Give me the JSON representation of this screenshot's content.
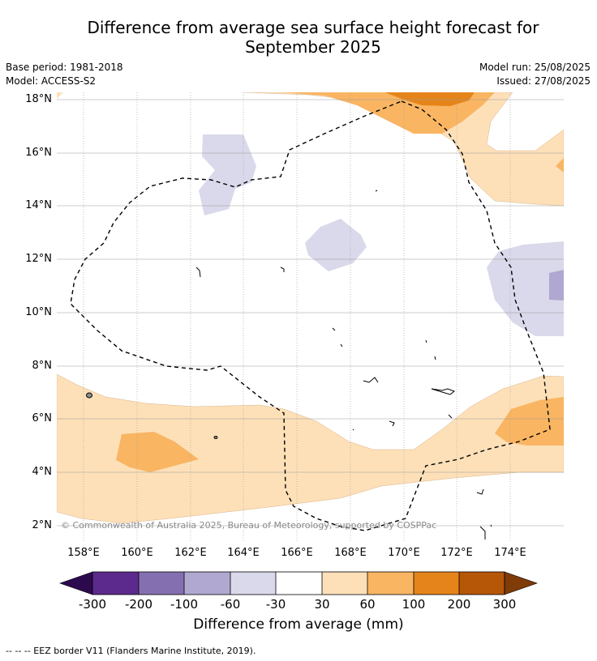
{
  "title": {
    "line1": "Difference from average sea surface height forecast for",
    "line2": "September 2025"
  },
  "meta": {
    "base_period": "Base period: 1981-2018",
    "model": "Model: ACCESS-S2",
    "model_run": "Model run: 25/08/2025",
    "issued": "Issued: 27/08/2025"
  },
  "map": {
    "lat_labels": [
      "18°N",
      "16°N",
      "14°N",
      "12°N",
      "10°N",
      "8°N",
      "6°N",
      "4°N",
      "2°N"
    ],
    "lon_labels": [
      "158°E",
      "160°E",
      "162°E",
      "164°E",
      "166°E",
      "168°E",
      "170°E",
      "172°E",
      "174°E"
    ],
    "copyright": "© Commonwealth of Australia 2025, Bureau of Meteorology, supported by COSPPac",
    "eez_border": "EEZ border"
  },
  "colorbar": {
    "title": "Difference from average (mm)",
    "ticks": [
      "-300",
      "-200",
      "-100",
      "-60",
      "-30",
      "30",
      "60",
      "100",
      "200",
      "300"
    ],
    "colors": [
      "#2d0a4e",
      "#5b2a8c",
      "#8470b0",
      "#b0a8d0",
      "#d9d9eb",
      "#ffffff",
      "#fde0b8",
      "#f9b562",
      "#e5841a",
      "#b65708",
      "#7f3b08"
    ]
  },
  "footnote": "-- -- -- EEZ border V11 (Flanders Marine Institute, 2019)."
}
